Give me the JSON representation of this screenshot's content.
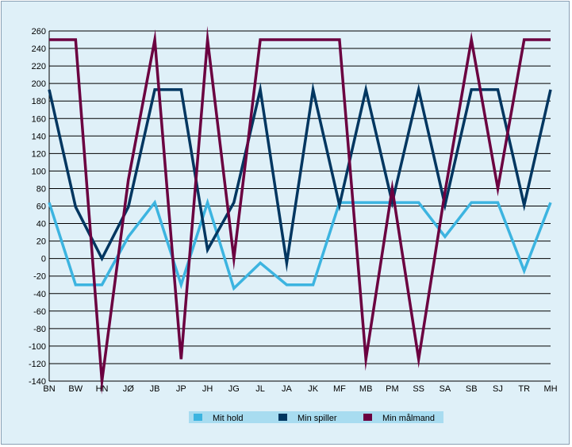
{
  "chart_data": {
    "type": "line",
    "title": "",
    "xlabel": "",
    "ylabel": "",
    "ylim": [
      -140,
      260
    ],
    "ystep": 20,
    "grid": true,
    "legend_position": "bottom",
    "categories": [
      "BN",
      "BW",
      "HN",
      "JØ",
      "JB",
      "JP",
      "JH",
      "JG",
      "JL",
      "JA",
      "JK",
      "MF",
      "MB",
      "PM",
      "SS",
      "SA",
      "SB",
      "SJ",
      "TR",
      "MH"
    ],
    "series": [
      {
        "name": "Mit hold",
        "color": "#3cb4e0",
        "values": [
          64,
          -30,
          -30,
          25,
          64,
          -30,
          64,
          -34,
          -5,
          -30,
          -30,
          64,
          64,
          64,
          64,
          25,
          64,
          64,
          -14,
          64
        ]
      },
      {
        "name": "Min spiller",
        "color": "#003660",
        "values": [
          193,
          59,
          0,
          59,
          193,
          193,
          10,
          64,
          193,
          -5,
          193,
          61,
          193,
          64,
          193,
          61,
          193,
          193,
          61,
          193
        ]
      },
      {
        "name": "Min målmand",
        "color": "#6b0040",
        "values": [
          250,
          250,
          -140,
          90,
          250,
          -115,
          250,
          0,
          250,
          250,
          250,
          250,
          -115,
          80,
          -115,
          76,
          250,
          80,
          250,
          250
        ]
      }
    ]
  }
}
